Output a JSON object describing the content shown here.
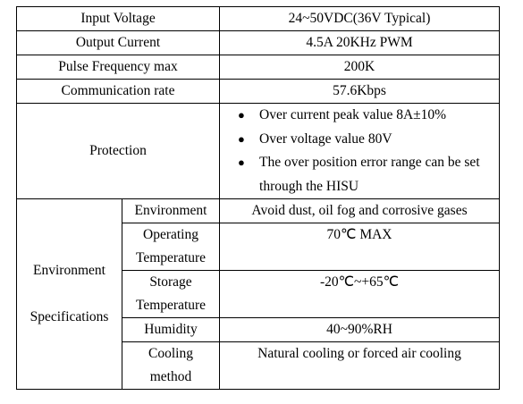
{
  "rows": [
    {
      "label": "Input Voltage",
      "value": "24~50VDC(36V Typical)"
    },
    {
      "label": "Output Current",
      "value": "4.5A 20KHz PWM"
    },
    {
      "label": "Pulse Frequency max",
      "value": "200K"
    },
    {
      "label": "Communication rate",
      "value": "57.6Kbps"
    }
  ],
  "protection": {
    "label": "Protection",
    "items": [
      "Over current peak value 8A±10%",
      "Over voltage value 80V",
      "The over position error range can be set through the HISU"
    ]
  },
  "environment": {
    "label": [
      "Environment",
      "Specifications"
    ],
    "rows": [
      {
        "label": "Environment",
        "value": "Avoid dust, oil fog and corrosive gases"
      },
      {
        "label": "Operating Temperature",
        "value": "70℃ MAX"
      },
      {
        "label": "Storage Temperature",
        "value": "-20℃~+65℃"
      },
      {
        "label": "Humidity",
        "value": "40~90%RH"
      },
      {
        "label": "Cooling method",
        "value": "Natural cooling or forced air cooling"
      }
    ]
  }
}
